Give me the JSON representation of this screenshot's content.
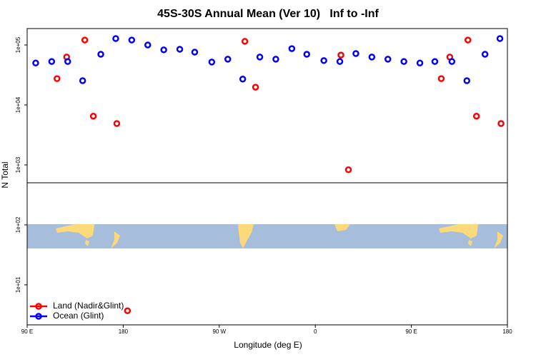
{
  "chart_data": {
    "type": "scatter",
    "title": "45S-30S Annual Mean (Ver 10)   Inf to -Inf",
    "xlabel": "Longitude (deg E)",
    "ylabel": "N Total",
    "xlim": [
      90,
      540
    ],
    "xticks": [
      {
        "value": 90,
        "label": "90 E"
      },
      {
        "value": 180,
        "label": "180"
      },
      {
        "value": 270,
        "label": "90 W"
      },
      {
        "value": 360,
        "label": "0"
      },
      {
        "value": 450,
        "label": "90 E"
      },
      {
        "value": 540,
        "label": "180"
      }
    ],
    "ylim": [
      2.15,
      188000
    ],
    "log_y": true,
    "yticks": [
      {
        "value": 10,
        "label": "1e+01"
      },
      {
        "value": 100,
        "label": "1e+02"
      },
      {
        "value": 1000,
        "label": "1e+03"
      },
      {
        "value": 10000,
        "label": "1e+04"
      },
      {
        "value": 100000,
        "label": "1e+05"
      }
    ],
    "legend": "bottom-left",
    "series": [
      {
        "name": "Land (Nadir&Glint)",
        "color": "#ff0000",
        "x": [
          118,
          127,
          144,
          152,
          174,
          184,
          294,
          304,
          384,
          391,
          478,
          486,
          503,
          511,
          534
        ],
        "values": [
          27500,
          63000,
          121000,
          6500,
          4900,
          3.7,
          115000,
          19800,
          68000,
          830,
          27500,
          63000,
          121000,
          6500,
          4900
        ]
      },
      {
        "name": "Ocean (Glint)",
        "color": "#0000ff",
        "x": [
          98,
          113,
          128,
          142,
          159,
          173,
          188,
          203,
          218,
          233,
          247,
          263,
          278,
          292,
          308,
          323,
          338,
          352,
          368,
          383,
          398,
          413,
          428,
          443,
          458,
          472,
          488,
          502,
          519,
          533
        ],
        "values": [
          50000,
          53000,
          53000,
          25400,
          70000,
          128000,
          121000,
          100000,
          83000,
          85000,
          76000,
          52000,
          58000,
          27000,
          63000,
          58000,
          87000,
          70000,
          55000,
          53000,
          72000,
          63000,
          58000,
          53000,
          50000,
          53000,
          53000,
          25400,
          70000,
          128000
        ]
      }
    ]
  }
}
